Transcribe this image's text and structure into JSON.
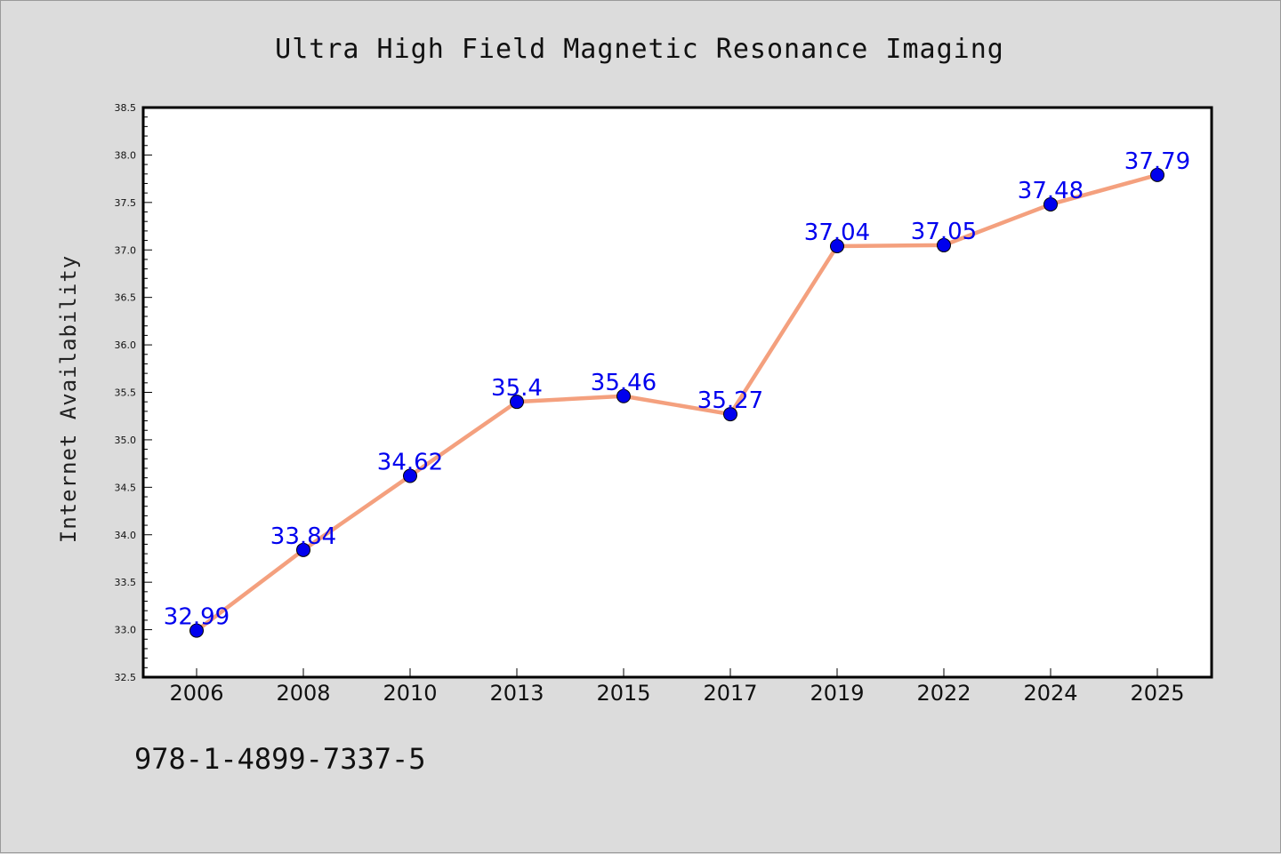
{
  "chart_data": {
    "type": "line",
    "title": "Ultra High Field Magnetic Resonance Imaging",
    "xlabel": "",
    "ylabel": "Internet Availability",
    "categories": [
      "2006",
      "2008",
      "2010",
      "2013",
      "2015",
      "2017",
      "2019",
      "2022",
      "2024",
      "2025"
    ],
    "values": [
      32.99,
      33.84,
      34.62,
      35.4,
      35.46,
      35.27,
      37.04,
      37.05,
      37.48,
      37.79
    ],
    "data_labels": [
      "32.99",
      "33.84",
      "34.62",
      "35.4",
      "35.46",
      "35.27",
      "37.04",
      "37.05",
      "37.48",
      "37.79"
    ],
    "ylim": [
      32.5,
      38.5
    ],
    "yticks": [
      "32.5",
      "33.0",
      "33.5",
      "34.0",
      "34.5",
      "35.0",
      "35.5",
      "36.0",
      "36.5",
      "37.0",
      "37.5",
      "38.0",
      "38.5"
    ],
    "grid": false,
    "legend": "none",
    "colors": {
      "line": "#f4a07e",
      "marker": "#0000ee",
      "marker_edge": "#000000",
      "label": "#0000ee",
      "background": "#dcdcdc",
      "plot_background": "#ffffff"
    }
  },
  "footer": {
    "isbn": "978-1-4899-7337-5"
  }
}
